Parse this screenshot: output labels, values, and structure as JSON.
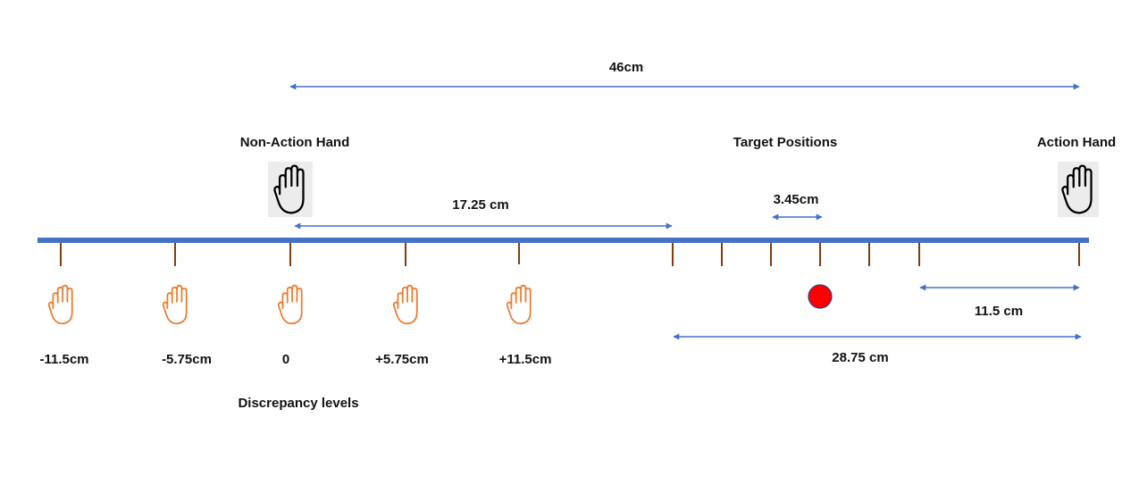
{
  "labels": {
    "total_distance": "46cm",
    "non_action_hand": "Non-Action Hand",
    "target_positions": "Target Positions",
    "action_hand": "Action Hand",
    "hand_to_first_target": "17.25 cm",
    "target_spacing": "3.45cm",
    "last_target_to_action": "11.5 cm",
    "target_span_to_action": "28.75 cm",
    "discrepancy_title": "Discrepancy levels"
  },
  "discrepancy_levels": [
    "-11.5cm",
    "-5.75cm",
    "0",
    "+5.75cm",
    "+11.5cm"
  ],
  "colors": {
    "track": "#4472c4",
    "arrow": "#4472c4",
    "tick": "#843c0c",
    "discrepancy_hand": "#ed7d31",
    "hand_outline": "#000000",
    "target_dot": "#ff0000"
  },
  "icons": {
    "non_action_hand": "hand-outline-icon",
    "action_hand": "hand-outline-icon",
    "discrepancy_hand": "hand-icon",
    "target": "red-dot-icon"
  }
}
